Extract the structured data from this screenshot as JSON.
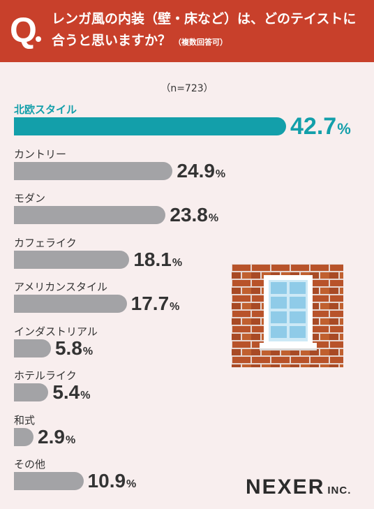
{
  "question": {
    "mark": "Q",
    "line1": "レンガ風の内装（壁・床など）は、どのテイストに",
    "line2": "合うと思いますか？",
    "note": "（複数回答可）"
  },
  "sample_size": "（n=723）",
  "brand": {
    "name": "NEXER",
    "suffix": "INC."
  },
  "colors": {
    "header": "#c8402b",
    "highlight": "#139faa",
    "bar": "#a3a3a6",
    "background": "#f8eeee"
  },
  "chart_data": {
    "type": "bar",
    "orientation": "horizontal",
    "unit": "%",
    "categories": [
      "北欧スタイル",
      "カントリー",
      "モダン",
      "カフェライク",
      "アメリカンスタイル",
      "インダストリアル",
      "ホテルライク",
      "和式",
      "その他"
    ],
    "values": [
      42.7,
      24.9,
      23.8,
      18.1,
      17.7,
      5.8,
      5.4,
      2.9,
      10.9
    ],
    "value_labels": [
      "42.7",
      "24.9",
      "23.8",
      "18.1",
      "17.7",
      "5.8",
      "5.4",
      "2.9",
      "10.9"
    ],
    "highlight_index": 0,
    "xlim": [
      0,
      42.7
    ],
    "grid": false,
    "legend": "none"
  }
}
